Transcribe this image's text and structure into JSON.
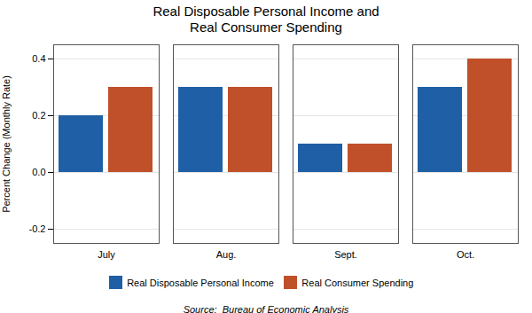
{
  "chart_data": {
    "type": "bar",
    "title": "Real Disposable Personal Income and\nReal Consumer Spending",
    "categories": [
      "July",
      "Aug.",
      "Sept.",
      "Oct."
    ],
    "series": [
      {
        "name": "Real Disposable Personal Income",
        "color": "#1F5FA6",
        "values": [
          0.2,
          0.3,
          0.1,
          0.3
        ]
      },
      {
        "name": "Real Consumer Spending",
        "color": "#C0502A",
        "values": [
          0.3,
          0.3,
          0.1,
          0.4
        ]
      }
    ],
    "ylabel": "Percent Change (Monthly Rate)",
    "ylim": [
      -0.25,
      0.45
    ],
    "yticks": [
      -0.2,
      {
        "value": 0,
        "label": "0.0"
      },
      0.2,
      0.4
    ],
    "grid": true,
    "legend": "bottom",
    "caption": "Source:  Bureau of Economic Analysis"
  }
}
